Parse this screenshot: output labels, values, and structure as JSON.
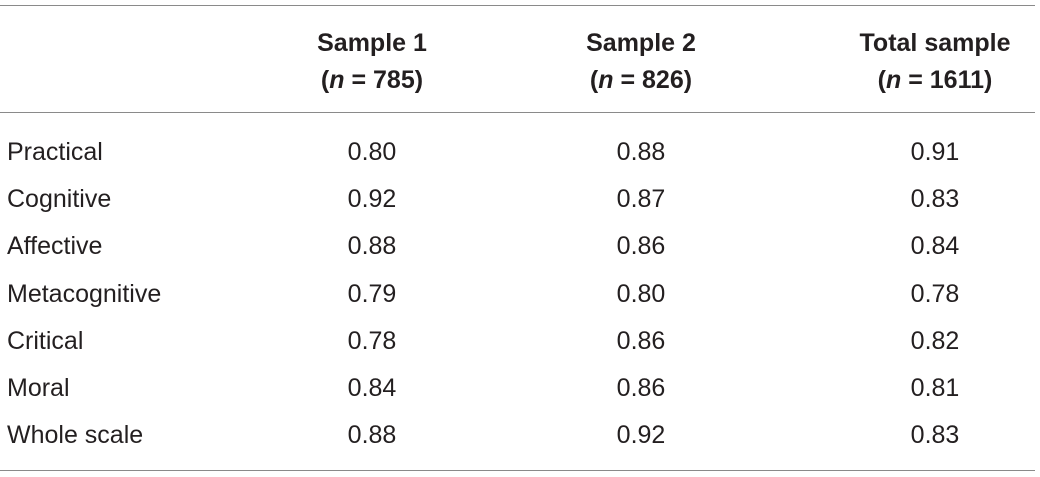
{
  "table": {
    "columns": [
      {
        "title": "Sample 1",
        "open": "(",
        "symbol": "n",
        "rest": " = 785)"
      },
      {
        "title": "Sample 2",
        "open": "(",
        "symbol": "n",
        "rest": " = 826)"
      },
      {
        "title": "Total sample",
        "open": "(",
        "symbol": "n",
        "rest": " = 1611)"
      }
    ],
    "rows": [
      [
        "Practical",
        "0.80",
        "0.88",
        "0.91"
      ],
      [
        "Cognitive",
        "0.92",
        "0.87",
        "0.83"
      ],
      [
        "Affective",
        "0.88",
        "0.86",
        "0.84"
      ],
      [
        "Metacognitive",
        "0.79",
        "0.80",
        "0.78"
      ],
      [
        "Critical",
        "0.78",
        "0.86",
        "0.82"
      ],
      [
        "Moral",
        "0.84",
        "0.86",
        "0.81"
      ],
      [
        "Whole scale",
        "0.88",
        "0.92",
        "0.83"
      ]
    ]
  }
}
